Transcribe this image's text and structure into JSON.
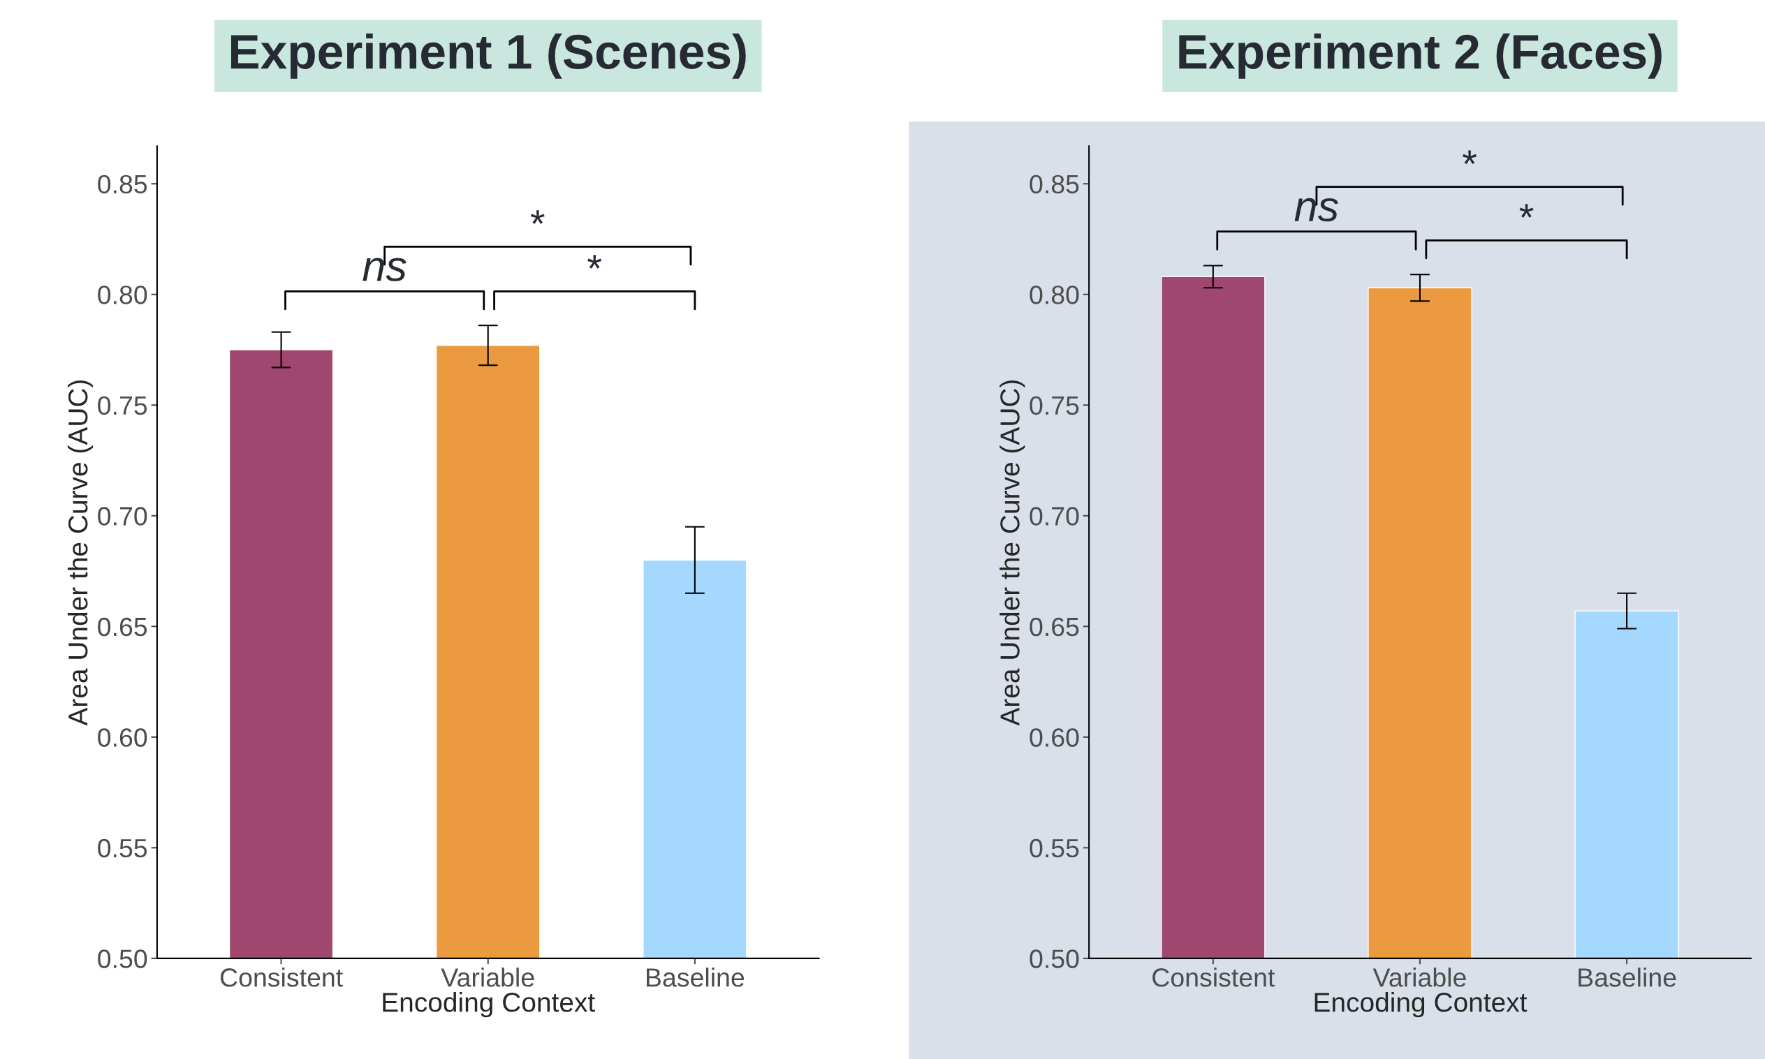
{
  "chart_data": [
    {
      "type": "bar",
      "title": "Experiment 1 (Scenes)",
      "xlabel": "Encoding Context",
      "ylabel": "Area Under the Curve (AUC)",
      "categories": [
        "Consistent",
        "Variable",
        "Baseline"
      ],
      "values": [
        0.775,
        0.777,
        0.68
      ],
      "colors": [
        "#a04770",
        "#eb9a40",
        "#a5d8fe"
      ],
      "errors": [
        0.008,
        0.009,
        0.015
      ],
      "ylim": [
        0.5,
        0.867
      ],
      "yticks": [
        {
          "value": 0.5,
          "label": "0.50"
        },
        {
          "value": 0.55,
          "label": "0.55"
        },
        {
          "value": 0.6,
          "label": "0.60"
        },
        {
          "value": 0.65,
          "label": "0.65"
        },
        {
          "value": 0.7,
          "label": "0.70"
        },
        {
          "value": 0.75,
          "label": "0.75"
        },
        {
          "value": 0.8,
          "label": "0.80"
        },
        {
          "value": 0.85,
          "label": "0.85"
        }
      ],
      "annotations": [
        "ns",
        "*",
        "*"
      ]
    },
    {
      "type": "bar",
      "title": "Experiment 2 (Faces)",
      "xlabel": "Encoding Context",
      "ylabel": "Area Under the Curve (AUC)",
      "categories": [
        "Consistent",
        "Variable",
        "Baseline"
      ],
      "values": [
        0.808,
        0.803,
        0.657
      ],
      "colors": [
        "#a04770",
        "#eb9a40",
        "#a5d8fe"
      ],
      "errors": [
        0.005,
        0.006,
        0.008
      ],
      "ylim": [
        0.5,
        0.867
      ],
      "yticks": [
        {
          "value": 0.5,
          "label": "0.50"
        },
        {
          "value": 0.55,
          "label": "0.55"
        },
        {
          "value": 0.6,
          "label": "0.60"
        },
        {
          "value": 0.65,
          "label": "0.65"
        },
        {
          "value": 0.7,
          "label": "0.70"
        },
        {
          "value": 0.75,
          "label": "0.75"
        },
        {
          "value": 0.8,
          "label": "0.80"
        },
        {
          "value": 0.85,
          "label": "0.85"
        }
      ],
      "annotations": [
        "ns",
        "*",
        "*"
      ]
    }
  ]
}
